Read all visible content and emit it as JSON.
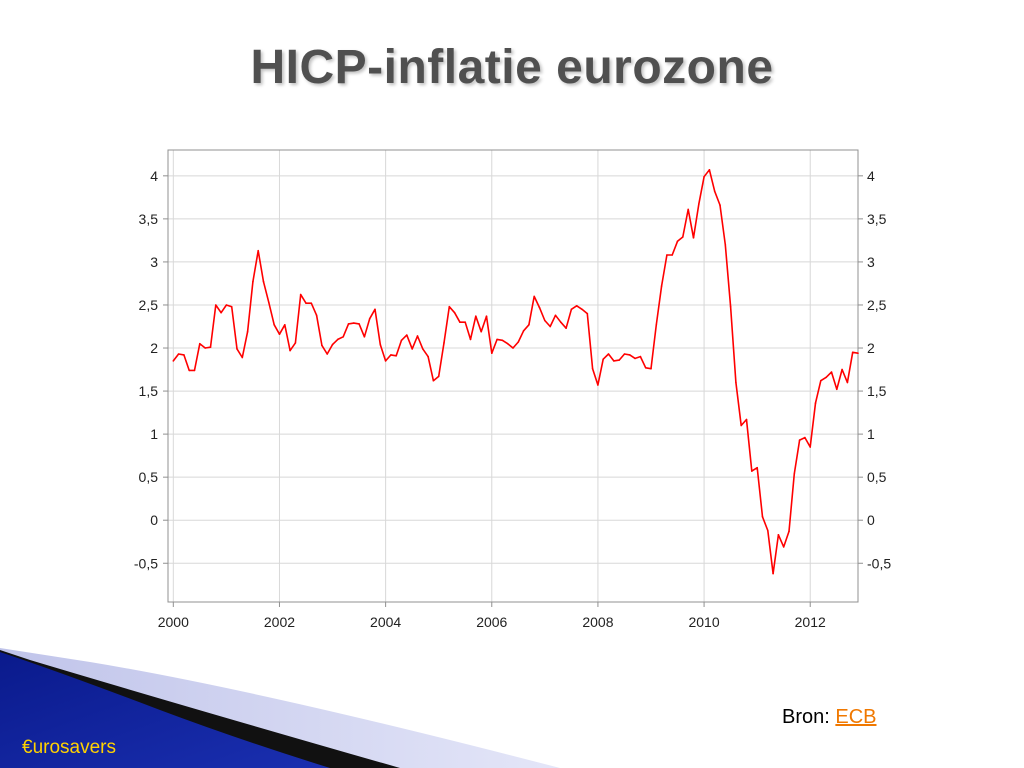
{
  "slide": {
    "title": "HICP-inflatie eurozone",
    "source_prefix": "Bron:",
    "source_link": "ECB",
    "footer_brand": "€urosavers"
  },
  "colors": {
    "series": "#ff0000",
    "grid": "#d8d8d8",
    "axis": "#909090",
    "title_text": "#505050",
    "link": "#f07800",
    "brand": "#ffd200",
    "decor_blue": "#0a1a8c"
  },
  "chart_data": {
    "type": "line",
    "title": "",
    "xlabel": "",
    "ylabel": "",
    "xlim": [
      1999.9,
      2012.9
    ],
    "ylim": [
      -0.95,
      4.3
    ],
    "x_ticks": [
      2000,
      2002,
      2004,
      2006,
      2008,
      2010,
      2012
    ],
    "x_tick_labels": [
      "2000",
      "2002",
      "2004",
      "2006",
      "2008",
      "2010",
      "2012"
    ],
    "y_ticks": [
      -0.5,
      0,
      0.5,
      1,
      1.5,
      2,
      2.5,
      3,
      3.5,
      4
    ],
    "y_tick_labels": [
      "-0,5",
      "0",
      "0,5",
      "1",
      "1,5",
      "2",
      "2,5",
      "3",
      "3,5",
      "4"
    ],
    "y_axis_both_sides": true,
    "grid": true,
    "legend": "none",
    "series": [
      {
        "points": [
          [
            2000.0,
            1.85
          ],
          [
            2000.1,
            1.93
          ],
          [
            2000.2,
            1.92
          ],
          [
            2000.3,
            1.74
          ],
          [
            2000.4,
            1.74
          ],
          [
            2000.5,
            2.05
          ],
          [
            2000.6,
            2.0
          ],
          [
            2000.7,
            2.01
          ],
          [
            2000.8,
            2.5
          ],
          [
            2000.9,
            2.41
          ],
          [
            2001.0,
            2.5
          ],
          [
            2001.1,
            2.48
          ],
          [
            2001.2,
            1.99
          ],
          [
            2001.3,
            1.89
          ],
          [
            2001.4,
            2.19
          ],
          [
            2001.5,
            2.77
          ],
          [
            2001.6,
            3.13
          ],
          [
            2001.7,
            2.77
          ],
          [
            2001.8,
            2.53
          ],
          [
            2001.9,
            2.27
          ],
          [
            2002.0,
            2.16
          ],
          [
            2002.1,
            2.27
          ],
          [
            2002.2,
            1.97
          ],
          [
            2002.3,
            2.06
          ],
          [
            2002.4,
            2.62
          ],
          [
            2002.5,
            2.52
          ],
          [
            2002.6,
            2.52
          ],
          [
            2002.7,
            2.38
          ],
          [
            2002.8,
            2.03
          ],
          [
            2002.9,
            1.93
          ],
          [
            2003.0,
            2.04
          ],
          [
            2003.1,
            2.1
          ],
          [
            2003.2,
            2.13
          ],
          [
            2003.3,
            2.28
          ],
          [
            2003.4,
            2.29
          ],
          [
            2003.5,
            2.28
          ],
          [
            2003.6,
            2.13
          ],
          [
            2003.7,
            2.34
          ],
          [
            2003.8,
            2.45
          ],
          [
            2003.9,
            2.04
          ],
          [
            2004.0,
            1.85
          ],
          [
            2004.1,
            1.92
          ],
          [
            2004.2,
            1.91
          ],
          [
            2004.3,
            2.09
          ],
          [
            2004.4,
            2.15
          ],
          [
            2004.5,
            1.99
          ],
          [
            2004.6,
            2.14
          ],
          [
            2004.7,
            1.99
          ],
          [
            2004.8,
            1.9
          ],
          [
            2004.9,
            1.62
          ],
          [
            2005.0,
            1.67
          ],
          [
            2005.1,
            2.06
          ],
          [
            2005.2,
            2.48
          ],
          [
            2005.3,
            2.41
          ],
          [
            2005.4,
            2.3
          ],
          [
            2005.5,
            2.3
          ],
          [
            2005.6,
            2.1
          ],
          [
            2005.7,
            2.37
          ],
          [
            2005.8,
            2.19
          ],
          [
            2005.9,
            2.37
          ],
          [
            2006.0,
            1.94
          ],
          [
            2006.1,
            2.1
          ],
          [
            2006.2,
            2.09
          ],
          [
            2006.3,
            2.05
          ],
          [
            2006.4,
            2.0
          ],
          [
            2006.5,
            2.07
          ],
          [
            2006.6,
            2.2
          ],
          [
            2006.7,
            2.27
          ],
          [
            2006.8,
            2.6
          ],
          [
            2006.9,
            2.47
          ],
          [
            2007.0,
            2.32
          ],
          [
            2007.1,
            2.25
          ],
          [
            2007.2,
            2.38
          ],
          [
            2007.3,
            2.3
          ],
          [
            2007.4,
            2.23
          ],
          [
            2007.5,
            2.45
          ],
          [
            2007.6,
            2.49
          ],
          [
            2007.7,
            2.45
          ],
          [
            2007.8,
            2.4
          ],
          [
            2007.9,
            1.76
          ],
          [
            2008.0,
            1.57
          ],
          [
            2008.1,
            1.87
          ],
          [
            2008.2,
            1.93
          ],
          [
            2008.3,
            1.85
          ],
          [
            2008.4,
            1.86
          ],
          [
            2008.5,
            1.93
          ],
          [
            2008.6,
            1.92
          ],
          [
            2008.7,
            1.88
          ],
          [
            2008.8,
            1.9
          ],
          [
            2008.9,
            1.77
          ],
          [
            2009.0,
            1.76
          ],
          [
            2009.1,
            2.27
          ],
          [
            2009.2,
            2.72
          ],
          [
            2009.3,
            3.08
          ],
          [
            2009.4,
            3.08
          ],
          [
            2009.5,
            3.24
          ],
          [
            2009.6,
            3.29
          ],
          [
            2009.7,
            3.61
          ],
          [
            2009.8,
            3.28
          ],
          [
            2009.9,
            3.67
          ],
          [
            2010.0,
            3.99
          ],
          [
            2010.1,
            4.07
          ],
          [
            2010.2,
            3.82
          ],
          [
            2010.3,
            3.66
          ],
          [
            2010.4,
            3.2
          ],
          [
            2010.5,
            2.48
          ],
          [
            2010.6,
            1.6
          ],
          [
            2010.7,
            1.1
          ],
          [
            2010.8,
            1.17
          ],
          [
            2010.9,
            0.57
          ],
          [
            2011.0,
            0.61
          ],
          [
            2011.1,
            0.04
          ],
          [
            2011.2,
            -0.12
          ],
          [
            2011.3,
            -0.62
          ],
          [
            2011.4,
            -0.17
          ],
          [
            2011.5,
            -0.31
          ],
          [
            2011.6,
            -0.13
          ],
          [
            2011.7,
            0.54
          ],
          [
            2011.8,
            0.93
          ],
          [
            2011.9,
            0.96
          ],
          [
            2012.0,
            0.85
          ],
          [
            2012.1,
            1.36
          ],
          [
            2012.2,
            1.62
          ],
          [
            2012.3,
            1.66
          ],
          [
            2012.4,
            1.72
          ],
          [
            2012.5,
            1.52
          ],
          [
            2012.6,
            1.75
          ],
          [
            2012.7,
            1.6
          ],
          [
            2012.8,
            1.95
          ],
          [
            2012.9,
            1.94
          ]
        ]
      }
    ]
  }
}
